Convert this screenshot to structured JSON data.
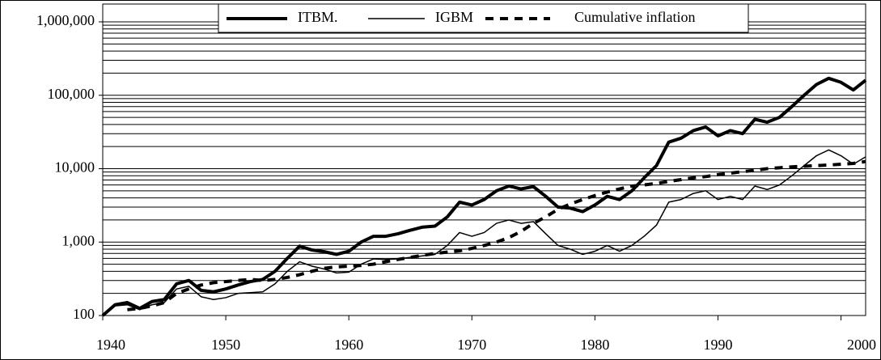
{
  "chart_data": {
    "type": "line",
    "x": [
      1940,
      1941,
      1942,
      1943,
      1944,
      1945,
      1946,
      1947,
      1948,
      1949,
      1950,
      1951,
      1952,
      1953,
      1954,
      1955,
      1956,
      1957,
      1958,
      1959,
      1960,
      1961,
      1962,
      1963,
      1964,
      1965,
      1966,
      1967,
      1968,
      1969,
      1970,
      1971,
      1972,
      1973,
      1974,
      1975,
      1976,
      1977,
      1978,
      1979,
      1980,
      1981,
      1982,
      1983,
      1984,
      1985,
      1986,
      1987,
      1988,
      1989,
      1990,
      1991,
      1992,
      1993,
      1994,
      1995,
      1996,
      1997,
      1998,
      1999,
      2000,
      2001,
      2002
    ],
    "series": [
      {
        "name": "ITBM.",
        "color": "#000000",
        "width": 4,
        "dash": "solid",
        "values": [
          100,
          140,
          150,
          125,
          155,
          165,
          270,
          300,
          220,
          210,
          230,
          260,
          290,
          310,
          400,
          600,
          880,
          780,
          740,
          680,
          750,
          1000,
          1200,
          1200,
          1300,
          1450,
          1600,
          1650,
          2200,
          3500,
          3200,
          3800,
          5000,
          5800,
          5300,
          5700,
          4200,
          3000,
          2900,
          2600,
          3200,
          4200,
          3800,
          5000,
          7500,
          11000,
          23000,
          26000,
          33000,
          37000,
          28000,
          33000,
          30000,
          47000,
          43000,
          50000,
          70000,
          100000,
          140000,
          170000,
          150000,
          118000,
          160000
        ]
      },
      {
        "name": "IGBM",
        "color": "#000000",
        "width": 1.5,
        "dash": "solid",
        "values": [
          100,
          135,
          140,
          120,
          140,
          150,
          230,
          250,
          180,
          165,
          175,
          200,
          205,
          210,
          270,
          400,
          540,
          470,
          430,
          380,
          390,
          500,
          590,
          580,
          590,
          620,
          650,
          680,
          900,
          1350,
          1200,
          1350,
          1800,
          2000,
          1800,
          1900,
          1300,
          900,
          800,
          680,
          750,
          900,
          750,
          900,
          1200,
          1700,
          3500,
          3800,
          4600,
          5000,
          3800,
          4200,
          3800,
          5800,
          5200,
          6000,
          8000,
          11000,
          15000,
          18000,
          15000,
          11500,
          14500
        ]
      },
      {
        "name": "Cumulative inflation",
        "color": "#000000",
        "width": 4,
        "dash": "dashed",
        "values": [
          null,
          null,
          120,
          125,
          135,
          150,
          200,
          230,
          260,
          280,
          290,
          300,
          310,
          300,
          310,
          330,
          360,
          400,
          440,
          460,
          470,
          480,
          500,
          540,
          580,
          620,
          660,
          700,
          730,
          760,
          820,
          900,
          1000,
          1150,
          1400,
          1800,
          2200,
          2800,
          3300,
          3800,
          4300,
          4800,
          5300,
          5800,
          6000,
          6300,
          6700,
          7100,
          7500,
          7800,
          8300,
          8700,
          9100,
          9500,
          10000,
          10300,
          10600,
          10800,
          11000,
          11200,
          11500,
          11800,
          12500
        ]
      }
    ],
    "xlim": [
      1940,
      2002
    ],
    "xticks": [
      1940,
      1950,
      1960,
      1970,
      1980,
      1990,
      2000
    ],
    "ylim": [
      100,
      1000000
    ],
    "log_scale": true,
    "yticks": [
      {
        "value": 100,
        "label": "100"
      },
      {
        "value": 1000,
        "label": "1,000"
      },
      {
        "value": 10000,
        "label": "10,000"
      },
      {
        "value": 100000,
        "label": "100,000"
      },
      {
        "value": 1000000,
        "label": "1,000,000"
      }
    ],
    "grid": true,
    "minor_grid": true,
    "legend": "top"
  }
}
